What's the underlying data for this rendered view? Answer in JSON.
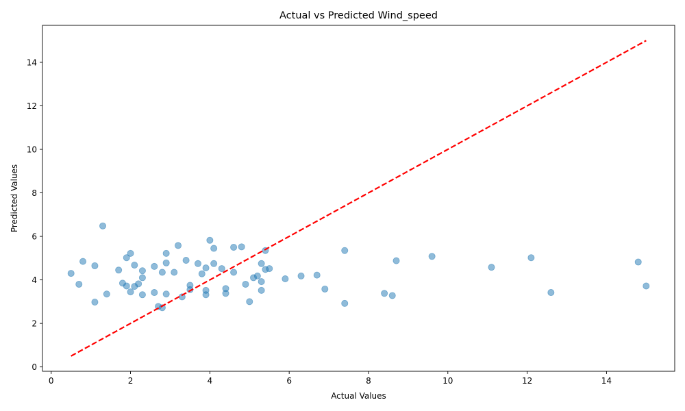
{
  "chart_data": {
    "type": "scatter",
    "title": "Actual vs Predicted Wind_speed",
    "xlabel": "Actual Values",
    "ylabel": "Predicted Values",
    "xlim": [
      -0.22,
      15.72
    ],
    "ylim": [
      -0.2,
      15.7
    ],
    "xticks": [
      0,
      2,
      4,
      6,
      8,
      10,
      12,
      14
    ],
    "yticks": [
      0,
      2,
      4,
      6,
      8,
      10,
      12,
      14
    ],
    "grid": false,
    "point_color": "#1f77b4",
    "point_alpha": 0.5,
    "reference_line": {
      "x": [
        0.5,
        15.0
      ],
      "y": [
        0.5,
        15.0
      ],
      "color": "#ff0000",
      "style": "dashed"
    },
    "points": [
      [
        0.5,
        4.3
      ],
      [
        0.7,
        3.8
      ],
      [
        0.8,
        4.85
      ],
      [
        1.1,
        4.65
      ],
      [
        1.1,
        2.98
      ],
      [
        1.3,
        6.48
      ],
      [
        1.4,
        3.35
      ],
      [
        1.7,
        4.45
      ],
      [
        1.8,
        3.85
      ],
      [
        1.9,
        5.02
      ],
      [
        1.9,
        3.72
      ],
      [
        2.0,
        5.22
      ],
      [
        2.0,
        3.45
      ],
      [
        2.1,
        4.68
      ],
      [
        2.1,
        3.7
      ],
      [
        2.2,
        3.82
      ],
      [
        2.3,
        4.42
      ],
      [
        2.3,
        4.1
      ],
      [
        2.3,
        3.32
      ],
      [
        2.6,
        4.62
      ],
      [
        2.6,
        3.42
      ],
      [
        2.7,
        2.78
      ],
      [
        2.8,
        2.72
      ],
      [
        2.8,
        4.35
      ],
      [
        2.9,
        5.22
      ],
      [
        2.9,
        4.78
      ],
      [
        2.9,
        3.35
      ],
      [
        3.1,
        4.35
      ],
      [
        3.2,
        5.58
      ],
      [
        3.3,
        3.22
      ],
      [
        3.4,
        4.9
      ],
      [
        3.5,
        3.75
      ],
      [
        3.5,
        3.55
      ],
      [
        3.7,
        4.75
      ],
      [
        3.8,
        4.28
      ],
      [
        3.9,
        4.55
      ],
      [
        3.9,
        3.52
      ],
      [
        3.9,
        3.32
      ],
      [
        4.0,
        5.82
      ],
      [
        4.1,
        5.45
      ],
      [
        4.1,
        4.75
      ],
      [
        4.3,
        4.52
      ],
      [
        4.4,
        3.6
      ],
      [
        4.4,
        3.38
      ],
      [
        4.6,
        5.5
      ],
      [
        4.6,
        4.35
      ],
      [
        4.8,
        5.52
      ],
      [
        4.9,
        3.8
      ],
      [
        5.0,
        3.0
      ],
      [
        5.1,
        4.1
      ],
      [
        5.2,
        4.18
      ],
      [
        5.3,
        4.75
      ],
      [
        5.3,
        3.92
      ],
      [
        5.3,
        3.52
      ],
      [
        5.4,
        5.35
      ],
      [
        5.4,
        4.48
      ],
      [
        5.5,
        4.52
      ],
      [
        5.9,
        4.05
      ],
      [
        6.3,
        4.18
      ],
      [
        6.7,
        4.22
      ],
      [
        6.9,
        3.58
      ],
      [
        7.4,
        5.35
      ],
      [
        7.4,
        2.92
      ],
      [
        8.4,
        3.38
      ],
      [
        8.6,
        3.28
      ],
      [
        8.7,
        4.88
      ],
      [
        9.6,
        5.08
      ],
      [
        11.1,
        4.58
      ],
      [
        12.1,
        5.02
      ],
      [
        12.6,
        3.42
      ],
      [
        14.8,
        4.82
      ],
      [
        15.0,
        3.72
      ]
    ]
  }
}
